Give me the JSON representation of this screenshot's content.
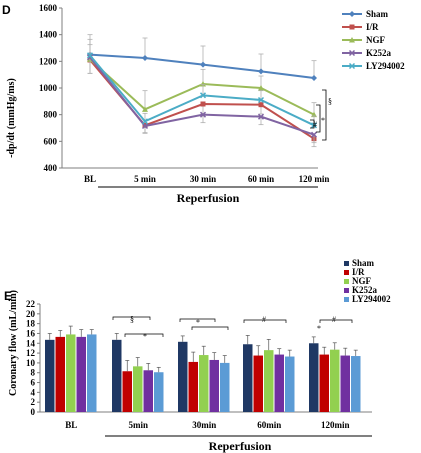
{
  "chart_data": [
    {
      "panel": "D",
      "type": "line",
      "ylabel": "-dp/dt (mmHg/ms)",
      "xlabel_group": "Reperfusion",
      "categories": [
        "BL",
        "5 min",
        "30 min",
        "60 min",
        "120 min"
      ],
      "ylim": [
        400,
        1600
      ],
      "yticks": [
        400,
        600,
        800,
        1000,
        1200,
        1400,
        1600
      ],
      "legend_position": "right",
      "series": [
        {
          "name": "Sham",
          "color": "#4f81bd",
          "marker": "diamond",
          "values": [
            1250,
            1225,
            1175,
            1125,
            1075
          ],
          "err": [
            150,
            150,
            140,
            130,
            130
          ]
        },
        {
          "name": "I/R",
          "color": "#c0504d",
          "marker": "square",
          "values": [
            1210,
            720,
            880,
            875,
            620
          ],
          "err": [
            100,
            60,
            80,
            70,
            60
          ]
        },
        {
          "name": "NGF",
          "color": "#9bbb59",
          "marker": "triangle",
          "values": [
            1215,
            840,
            1030,
            1000,
            800
          ],
          "err": [
            110,
            140,
            110,
            90,
            90
          ]
        },
        {
          "name": "K252a",
          "color": "#8064a2",
          "marker": "x",
          "values": [
            1230,
            715,
            800,
            785,
            650
          ],
          "err": [
            120,
            50,
            60,
            60,
            60
          ]
        },
        {
          "name": "LY294002",
          "color": "#4bacc6",
          "marker": "x",
          "values": [
            1245,
            750,
            945,
            910,
            720
          ],
          "err": [
            120,
            60,
            80,
            70,
            70
          ]
        }
      ],
      "annotations": [
        "§",
        "*",
        "#"
      ]
    },
    {
      "panel": "E",
      "type": "bar",
      "ylabel": "Coronary flow (mL/min)",
      "xlabel_group": "Reperfusion",
      "categories": [
        "BL",
        "5min",
        "30min",
        "60min",
        "120min"
      ],
      "ylim": [
        0,
        22
      ],
      "yticks": [
        0,
        2,
        4,
        6,
        8,
        10,
        12,
        14,
        16,
        18,
        20,
        22
      ],
      "legend_position": "right",
      "series": [
        {
          "name": "Sham",
          "color": "#1f3864",
          "values": [
            14.7,
            14.7,
            14.3,
            13.8,
            14.0
          ],
          "err": [
            1.3,
            1.3,
            1.2,
            1.8,
            1.3
          ]
        },
        {
          "name": "I/R",
          "color": "#c00000",
          "values": [
            15.3,
            8.3,
            10.2,
            11.5,
            11.7
          ],
          "err": [
            1.3,
            2.2,
            2.0,
            2.0,
            1.5
          ]
        },
        {
          "name": "NGF",
          "color": "#92d050",
          "values": [
            15.8,
            9.3,
            11.6,
            12.6,
            12.7
          ],
          "err": [
            1.7,
            1.8,
            1.8,
            2.2,
            1.4
          ]
        },
        {
          "name": "K252a",
          "color": "#7030a0",
          "values": [
            15.3,
            8.5,
            10.6,
            11.7,
            11.5
          ],
          "err": [
            1.5,
            1.4,
            1.5,
            1.2,
            1.5
          ]
        },
        {
          "name": "LY294002",
          "color": "#5b9bd5",
          "values": [
            15.8,
            8.1,
            10.0,
            11.3,
            11.4
          ],
          "err": [
            1.0,
            1.0,
            1.5,
            1.3,
            1.2
          ]
        }
      ],
      "annotations": [
        "§",
        "*",
        "*",
        "#",
        "*",
        "#"
      ]
    }
  ]
}
